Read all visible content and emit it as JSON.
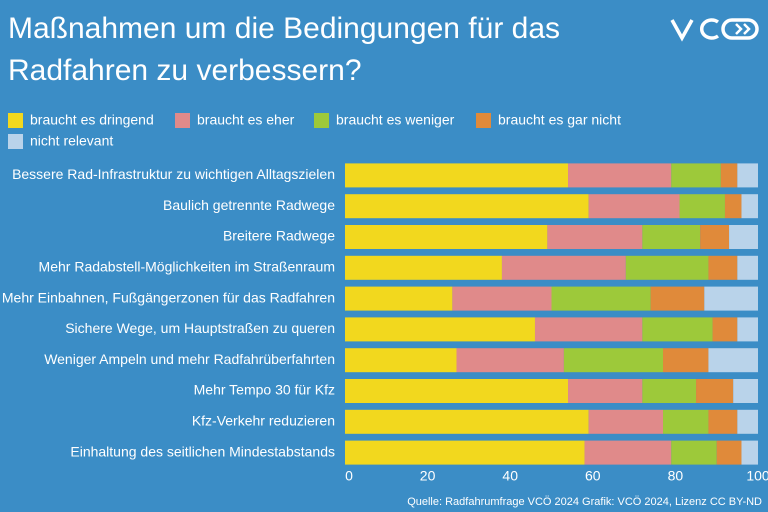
{
  "chart_data": {
    "type": "stacked_barh",
    "title": "Maßnahmen um die Bedingungen für das Radfahren zu verbessern?",
    "source": "Quelle: Radfahrumfrage VCÖ 2024 Grafik: VCÖ 2024, Lizenz CC BY-ND",
    "categories": [
      "Bessere Rad-Infrastruktur zu wichtigen Alltagszielen",
      "Baulich getrennte Radwege",
      "Breitere Radwege",
      "Mehr Radabstell-Möglichkeiten im Straßenraum",
      "Mehr Einbahnen, Fußgängerzonen für das Radfahren",
      "Sichere Wege, um Hauptstraßen zu queren",
      "Weniger Ampeln und mehr Radfahrüberfahrten",
      "Mehr Tempo 30 für Kfz",
      "Kfz-Verkehr reduzieren",
      "Einhaltung des seitlichen Mindestabstands"
    ],
    "series": [
      {
        "name": "braucht es dringend",
        "color": "#f2d81e",
        "values": [
          54,
          59,
          49,
          38,
          26,
          46,
          27,
          54,
          59,
          58
        ]
      },
      {
        "name": "braucht es eher",
        "color": "#e08a8a",
        "values": [
          25,
          22,
          23,
          30,
          24,
          26,
          26,
          18,
          18,
          21
        ]
      },
      {
        "name": "braucht es weniger",
        "color": "#9dc93a",
        "values": [
          12,
          11,
          14,
          20,
          24,
          17,
          24,
          13,
          11,
          11
        ]
      },
      {
        "name": "braucht es gar nicht",
        "color": "#e08a3a",
        "values": [
          4,
          4,
          7,
          7,
          13,
          6,
          11,
          9,
          7,
          6
        ]
      },
      {
        "name": "nicht relevant",
        "color": "#b9d3ea",
        "values": [
          5,
          4,
          7,
          5,
          13,
          5,
          12,
          6,
          5,
          4
        ]
      }
    ],
    "xlim": [
      0,
      100
    ],
    "xticks": [
      0,
      20,
      40,
      60,
      80,
      100
    ]
  }
}
